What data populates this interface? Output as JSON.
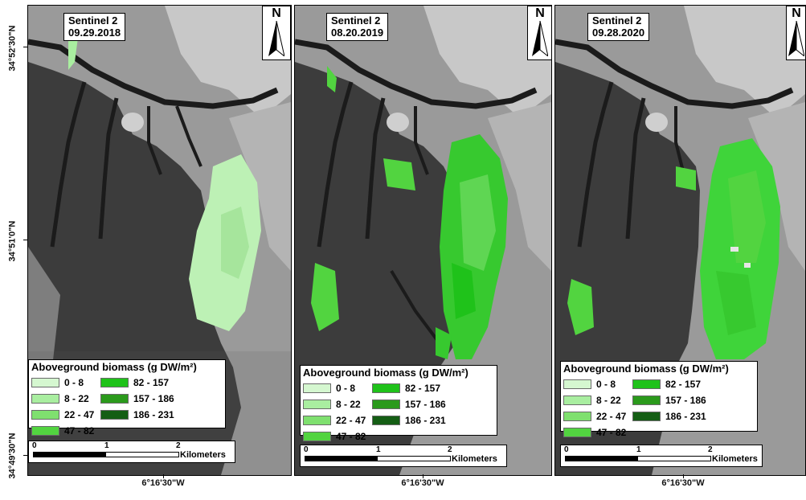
{
  "latitude_labels": [
    "34°52'30\"N",
    "34°51'0\"N",
    "34°49'30\"N"
  ],
  "longitude_labels": [
    "6°16'30\"W",
    "6°16'30\"W",
    "6°16'30\"W"
  ],
  "north_arrow_letter": "N",
  "legend": {
    "title": "Aboveground biomass (g DW/m²)",
    "classes": [
      {
        "label": "0 - 8",
        "color": "#d5f7d0"
      },
      {
        "label": "8 - 22",
        "color": "#a9eea0"
      },
      {
        "label": "22 - 47",
        "color": "#7fe06f"
      },
      {
        "label": "47 - 82",
        "color": "#52d440"
      },
      {
        "label": "82 - 157",
        "color": "#1fc21a"
      },
      {
        "label": "157 - 186",
        "color": "#2b9a1c"
      },
      {
        "label": "186 - 231",
        "color": "#145e14"
      }
    ]
  },
  "scale_bar": {
    "ticks": [
      "0",
      "1",
      "2"
    ],
    "unit": "Kilometers"
  },
  "panels": [
    {
      "sensor": "Sentinel 2",
      "date": "09.29.2018",
      "biomass_level": "low (pale green, mostly 0 - 47)"
    },
    {
      "sensor": "Sentinel 2",
      "date": "08.20.2019",
      "biomass_level": "medium (green, mostly 47 - 157)"
    },
    {
      "sensor": "Sentinel 2",
      "date": "09.28.2020",
      "biomass_level": "high (bright green, mostly 82 - 157)"
    }
  ]
}
